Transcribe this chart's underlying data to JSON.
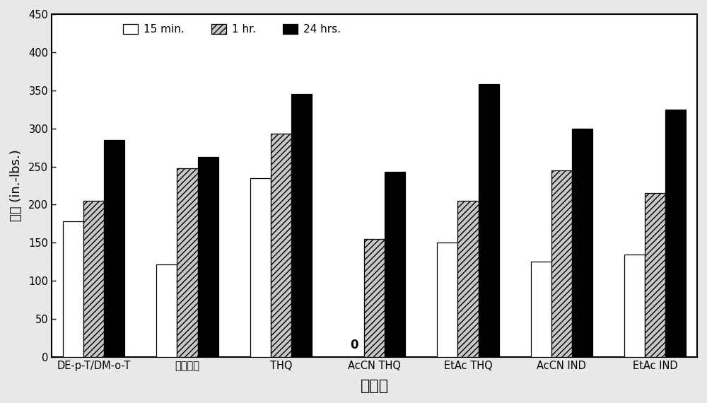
{
  "categories": [
    "DE-p-T/DM-o-T",
    "二氮咀咖",
    "THQ",
    "AcCN THQ",
    "EtAc THQ",
    "AcCN IND",
    "EtAc IND"
  ],
  "series": {
    "15 min.": [
      178,
      122,
      235,
      0,
      150,
      125,
      135
    ],
    "1 hr.": [
      205,
      248,
      293,
      155,
      205,
      245,
      215
    ],
    "24 hrs.": [
      285,
      263,
      345,
      243,
      358,
      300,
      325
    ]
  },
  "ylabel": "強度 (in.-lbs.)",
  "xlabel": "固化劑",
  "ylim": [
    0,
    450
  ],
  "yticks": [
    0,
    50,
    100,
    150,
    200,
    250,
    300,
    350,
    400,
    450
  ],
  "legend_labels": [
    "15 min.",
    "1 hr.",
    "24 hrs."
  ],
  "bar_width": 0.22,
  "axis_fontsize": 13,
  "tick_fontsize": 10.5,
  "legend_fontsize": 11,
  "xlabel_fontsize": 16,
  "ylabel_fontsize": 13,
  "background_color": "#e8e8e8",
  "plot_bg_color": "#ffffff",
  "bar_colors": [
    "#ffffff",
    "#c8c8c8",
    "#000000"
  ],
  "bar_edge_color": "#000000",
  "hatch_patterns": [
    "",
    "////",
    ""
  ]
}
